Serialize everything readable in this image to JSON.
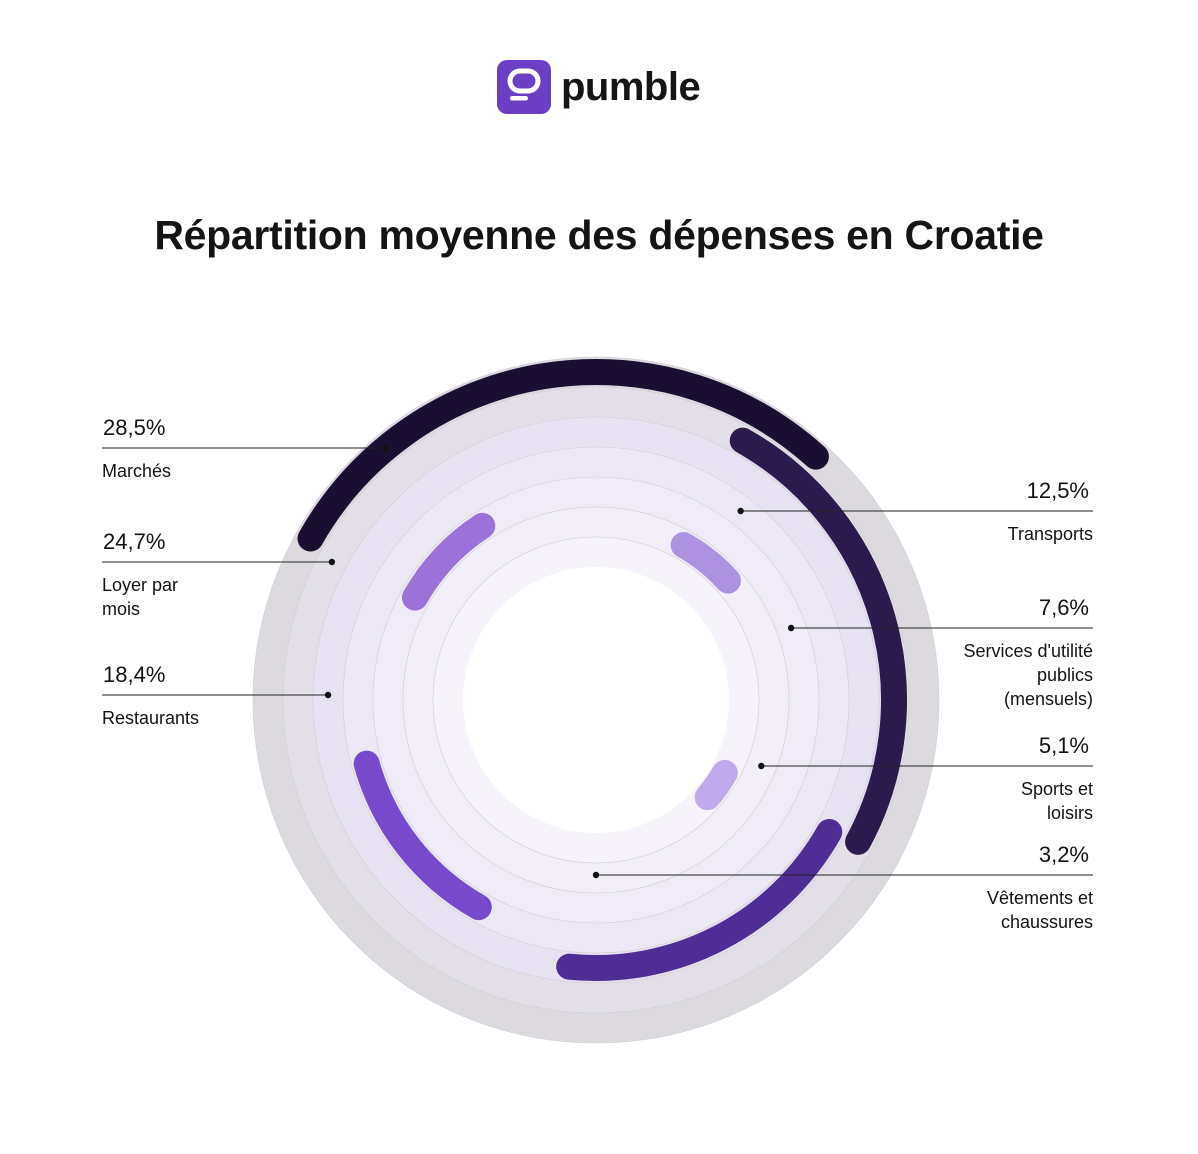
{
  "brand": {
    "name": "pumble",
    "color": "#6B3FC4"
  },
  "chart_data": {
    "type": "radial-bar",
    "title": "Répartition moyenne des dépenses en Croatie",
    "unit": "%",
    "series": [
      {
        "value": 28.5,
        "value_label": "28,5%",
        "label": [
          "Marchés"
        ],
        "color": "#1A0F30",
        "side": "left"
      },
      {
        "value": 24.7,
        "value_label": "24,7%",
        "label": [
          "Loyer par",
          "mois"
        ],
        "color": "#2B1A4E",
        "side": "left"
      },
      {
        "value": 18.4,
        "value_label": "18,4%",
        "label": [
          "Restaurants"
        ],
        "color": "#4E2D94",
        "side": "left"
      },
      {
        "value": 12.5,
        "value_label": "12,5%",
        "label": [
          "Transports"
        ],
        "color": "#7749CC",
        "side": "right"
      },
      {
        "value": 7.6,
        "value_label": "7,6%",
        "label": [
          "Services d'utilité",
          "publics",
          "(mensuels)"
        ],
        "color": "#9A72D8",
        "side": "right"
      },
      {
        "value": 5.1,
        "value_label": "5,1%",
        "label": [
          "Sports et",
          "loisirs"
        ],
        "color": "#AE92E2",
        "side": "right"
      },
      {
        "value": 3.2,
        "value_label": "3,2%",
        "label": [
          "Vêtements et",
          "chaussures"
        ],
        "color": "#C0A9EC",
        "side": "right"
      }
    ],
    "ring_colors": [
      "#DCDADF",
      "#E2DFE8",
      "#E7E2F1",
      "#EBE7F4",
      "#EFEBF7",
      "#F2EFF9",
      "#F6F3FB"
    ]
  }
}
